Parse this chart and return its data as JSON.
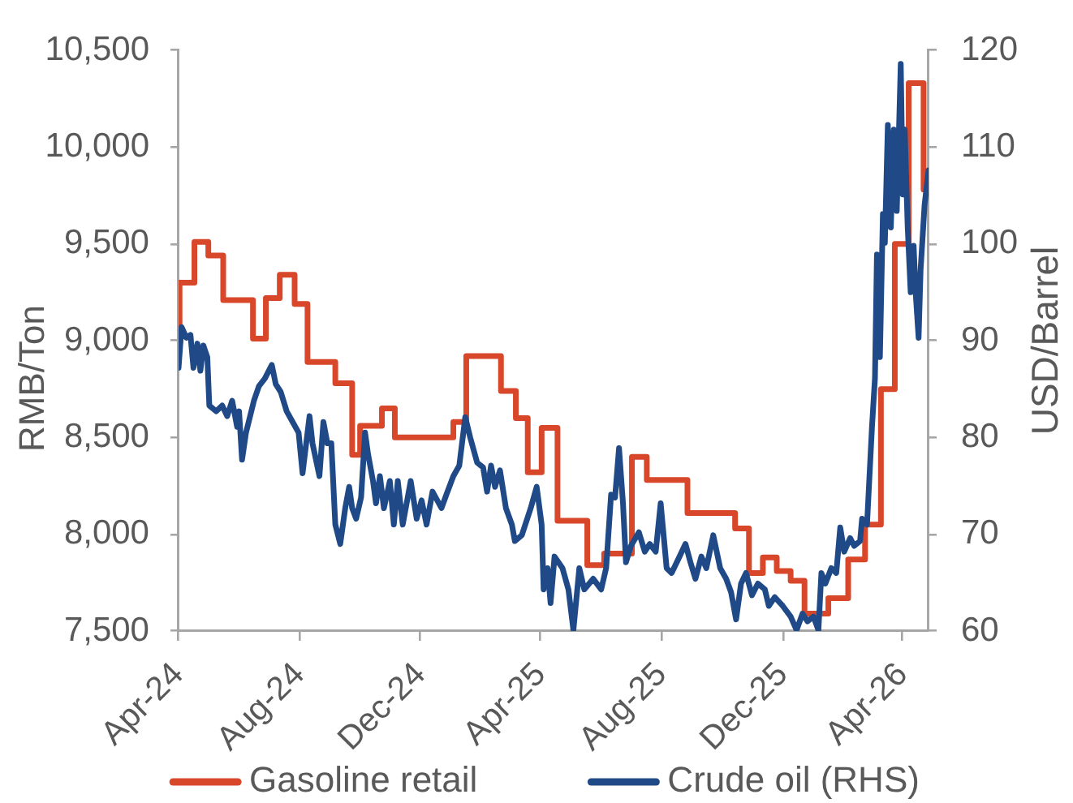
{
  "chart_data": {
    "type": "line",
    "ylabel": "RMB/Ton",
    "y2label": "USD/Barrel",
    "xlim": [
      "2024-04-01",
      "2026-04-27"
    ],
    "xticks": [
      {
        "value": "2024-04-01",
        "label": "Apr-24"
      },
      {
        "value": "2024-08-01",
        "label": "Aug-24"
      },
      {
        "value": "2024-12-01",
        "label": "Dec-24"
      },
      {
        "value": "2025-04-01",
        "label": "Apr-25"
      },
      {
        "value": "2025-08-01",
        "label": "Aug-25"
      },
      {
        "value": "2025-12-01",
        "label": "Dec-25"
      },
      {
        "value": "2026-04-01",
        "label": "Apr-26"
      }
    ],
    "ylim": [
      7500,
      10500
    ],
    "yticks": [
      {
        "value": 7500,
        "label": "7,500"
      },
      {
        "value": 8000,
        "label": "8,000"
      },
      {
        "value": 8500,
        "label": "8,500"
      },
      {
        "value": 9000,
        "label": "9,000"
      },
      {
        "value": 9500,
        "label": "9,500"
      },
      {
        "value": 10000,
        "label": "10,000"
      },
      {
        "value": 10500,
        "label": "10,500"
      }
    ],
    "y2lim": [
      60,
      120
    ],
    "y2ticks": [
      60,
      70,
      80,
      90,
      100,
      110,
      120
    ],
    "legend": "bottom",
    "marker": "none",
    "series": [
      {
        "name": "Gasoline retail",
        "type": "step",
        "color": "#d9472b",
        "x": [
          "2024-04-01",
          "2024-04-02",
          "2024-04-17",
          "2024-05-01",
          "2024-05-16",
          "2024-06-15",
          "2024-06-28",
          "2024-07-12",
          "2024-07-27",
          "2024-08-09",
          "2024-09-06",
          "2024-09-23",
          "2024-10-01",
          "2024-10-23",
          "2024-11-05",
          "2025-01-03",
          "2025-01-16",
          "2025-02-20",
          "2025-03-07",
          "2025-03-19",
          "2025-04-02",
          "2025-04-18",
          "2025-05-18",
          "2025-06-04",
          "2025-07-02",
          "2025-07-17",
          "2025-08-27",
          "2025-10-14",
          "2025-10-28",
          "2025-11-11",
          "2025-11-25",
          "2025-12-09",
          "2025-12-23",
          "2026-01-16",
          "2026-02-05",
          "2026-02-22",
          "2026-03-10",
          "2026-03-24",
          "2026-04-07",
          "2026-04-22",
          "2026-04-27"
        ],
        "values": [
          9080,
          9300,
          9510,
          9440,
          9210,
          9010,
          9220,
          9340,
          9190,
          8890,
          8780,
          8410,
          8560,
          8650,
          8500,
          8580,
          8920,
          8740,
          8600,
          8320,
          8550,
          8070,
          7840,
          7900,
          8400,
          8280,
          8110,
          8030,
          7800,
          7880,
          7810,
          7760,
          7590,
          7670,
          7870,
          8050,
          8750,
          9500,
          10330,
          9780,
          9780
        ]
      },
      {
        "name": "Crude oil (RHS)",
        "type": "line",
        "axis": "y2",
        "color": "#1f4a87",
        "x": [
          "2024-04-01",
          "2024-04-04",
          "2024-04-09",
          "2024-04-13",
          "2024-04-16",
          "2024-04-20",
          "2024-04-23",
          "2024-04-26",
          "2024-04-30",
          "2024-05-02",
          "2024-05-09",
          "2024-05-15",
          "2024-05-20",
          "2024-05-25",
          "2024-05-30",
          "2024-06-01",
          "2024-06-04",
          "2024-06-08",
          "2024-06-16",
          "2024-06-21",
          "2024-06-27",
          "2024-07-04",
          "2024-07-08",
          "2024-07-13",
          "2024-07-19",
          "2024-07-25",
          "2024-07-31",
          "2024-08-04",
          "2024-08-11",
          "2024-08-14",
          "2024-08-21",
          "2024-08-25",
          "2024-08-29",
          "2024-09-02",
          "2024-09-06",
          "2024-09-11",
          "2024-09-16",
          "2024-09-20",
          "2024-09-23",
          "2024-09-27",
          "2024-10-02",
          "2024-10-06",
          "2024-10-09",
          "2024-10-14",
          "2024-10-17",
          "2024-10-21",
          "2024-10-25",
          "2024-10-31",
          "2024-11-04",
          "2024-11-08",
          "2024-11-13",
          "2024-11-21",
          "2024-11-27",
          "2024-12-02",
          "2024-12-07",
          "2024-12-13",
          "2024-12-22",
          "2024-12-27",
          "2025-01-03",
          "2025-01-09",
          "2025-01-15",
          "2025-01-20",
          "2025-01-27",
          "2025-02-02",
          "2025-02-06",
          "2025-02-10",
          "2025-02-14",
          "2025-02-19",
          "2025-02-25",
          "2025-03-03",
          "2025-03-06",
          "2025-03-13",
          "2025-03-22",
          "2025-03-28",
          "2025-04-02",
          "2025-04-04",
          "2025-04-08",
          "2025-04-11",
          "2025-04-15",
          "2025-04-23",
          "2025-04-29",
          "2025-05-04",
          "2025-05-10",
          "2025-05-15",
          "2025-05-24",
          "2025-06-01",
          "2025-06-06",
          "2025-06-11",
          "2025-06-15",
          "2025-06-19",
          "2025-06-23",
          "2025-06-26",
          "2025-07-01",
          "2025-07-09",
          "2025-07-15",
          "2025-07-20",
          "2025-07-26",
          "2025-07-31",
          "2025-08-06",
          "2025-08-11",
          "2025-08-19",
          "2025-08-25",
          "2025-08-30",
          "2025-09-04",
          "2025-09-10",
          "2025-09-15",
          "2025-09-22",
          "2025-09-29",
          "2025-10-05",
          "2025-10-10",
          "2025-10-15",
          "2025-10-20",
          "2025-10-25",
          "2025-10-31",
          "2025-11-06",
          "2025-11-13",
          "2025-11-17",
          "2025-11-23",
          "2025-12-01",
          "2025-12-09",
          "2025-12-15",
          "2025-12-21",
          "2025-12-26",
          "2026-01-01",
          "2026-01-06",
          "2026-01-09",
          "2026-01-13",
          "2026-01-19",
          "2026-01-24",
          "2026-01-28",
          "2026-02-01",
          "2026-02-07",
          "2026-02-11",
          "2026-02-17",
          "2026-02-19",
          "2026-02-24",
          "2026-03-01",
          "2026-03-04",
          "2026-03-06",
          "2026-03-09",
          "2026-03-12",
          "2026-03-14",
          "2026-03-17",
          "2026-03-20",
          "2026-03-23",
          "2026-03-26",
          "2026-03-30",
          "2026-04-01",
          "2026-04-03",
          "2026-04-06",
          "2026-04-09",
          "2026-04-12",
          "2026-04-14",
          "2026-04-17",
          "2026-04-19",
          "2026-04-23",
          "2026-04-27"
        ],
        "values": [
          87.2,
          91.4,
          90.3,
          90.6,
          87.2,
          89.7,
          86.9,
          89.5,
          88.3,
          83.3,
          82.7,
          83.3,
          82.2,
          83.8,
          81.1,
          82.7,
          77.7,
          80.5,
          83.8,
          85.3,
          86.1,
          87.5,
          85.5,
          84.7,
          82.7,
          81.6,
          80.5,
          76.3,
          82.2,
          79.4,
          76.0,
          81.6,
          79.4,
          79.4,
          71.0,
          69.0,
          72.7,
          74.9,
          72.7,
          71.6,
          73.8,
          80.5,
          78.3,
          75.5,
          73.2,
          76.0,
          72.7,
          75.5,
          71.0,
          75.5,
          71.0,
          75.5,
          71.6,
          73.5,
          71.0,
          74.4,
          72.7,
          74.1,
          76.0,
          77.1,
          82.1,
          80.0,
          77.4,
          76.9,
          74.4,
          77.1,
          74.9,
          76.6,
          72.7,
          71.0,
          69.3,
          69.9,
          72.7,
          74.9,
          71.0,
          64.3,
          66.5,
          62.9,
          67.7,
          66.5,
          64.3,
          60.1,
          66.5,
          64.3,
          65.4,
          64.3,
          66.5,
          74.1,
          73.8,
          78.9,
          73.2,
          67.1,
          68.8,
          70.2,
          68.2,
          69.0,
          68.2,
          73.2,
          66.5,
          66.0,
          67.7,
          69.0,
          67.1,
          65.4,
          67.7,
          66.5,
          69.9,
          66.5,
          65.4,
          64.0,
          61.2,
          64.9,
          66.0,
          63.7,
          64.9,
          64.3,
          62.6,
          63.5,
          62.6,
          61.5,
          60.1,
          61.8,
          61.0,
          61.5,
          60.1,
          66.0,
          64.9,
          66.5,
          66.0,
          70.7,
          68.2,
          69.6,
          68.8,
          69.3,
          71.6,
          71.0,
          81.1,
          86.1,
          98.9,
          88.3,
          103.1,
          100.1,
          112.3,
          101.7,
          111.8,
          103.4,
          118.6,
          105.1,
          111.8,
          101.7,
          95.0,
          99.8,
          95.0,
          90.3,
          97.3,
          104.0,
          107.6
        ]
      }
    ]
  }
}
